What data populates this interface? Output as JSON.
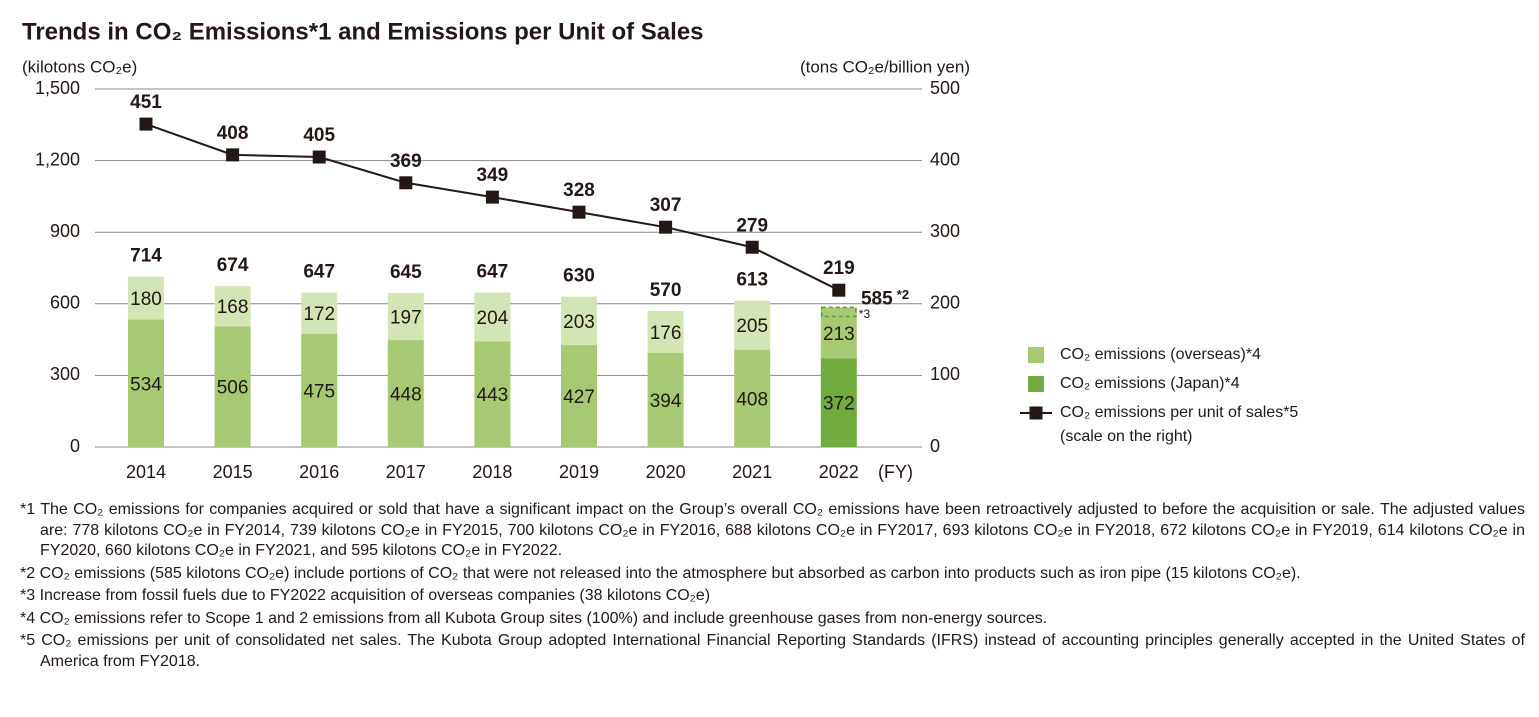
{
  "chart_data": {
    "type": "bar-line",
    "title": "Trends in CO₂ Emissions*1 and Emissions per Unit of Sales",
    "y_label": "(kilotons CO₂e)",
    "y2_label": "(tons CO₂e/billion yen)",
    "x_unit": "(FY)",
    "categories": [
      "2014",
      "2015",
      "2016",
      "2017",
      "2018",
      "2019",
      "2020",
      "2021",
      "2022"
    ],
    "series": [
      {
        "name": "CO₂ emissions (Japan)*4",
        "color": "#6fac3d",
        "colors": [
          "#a7c974",
          "#a7c974",
          "#a7c974",
          "#a7c974",
          "#a7c974",
          "#a7c974",
          "#a7c974",
          "#a7c974",
          "#6fac3d"
        ],
        "values": [
          534,
          506,
          475,
          448,
          443,
          427,
          394,
          408,
          372
        ]
      },
      {
        "name": "CO₂ emissions (overseas)*4",
        "color": "#a7c974",
        "colors": [
          "#d3e4b5",
          "#d3e4b5",
          "#d3e4b5",
          "#d3e4b5",
          "#d3e4b5",
          "#d3e4b5",
          "#d3e4b5",
          "#d3e4b5",
          "#a7c974"
        ],
        "values": [
          180,
          168,
          172,
          197,
          204,
          203,
          176,
          205,
          213
        ]
      },
      {
        "name": "CO₂ emissions per unit of sales*5",
        "name_note": "(scale on the right)",
        "color": "#231815",
        "axis": "y2",
        "values": [
          451,
          408,
          405,
          369,
          349,
          328,
          307,
          279,
          219
        ]
      }
    ],
    "totals": [
      714,
      674,
      647,
      645,
      647,
      630,
      570,
      613,
      585
    ],
    "total_note": "*2",
    "dashed_segment": {
      "value": 38,
      "label": "*3",
      "color": "#5a9e2f"
    },
    "ylim": [
      0,
      1500
    ],
    "yticks": [
      0,
      300,
      600,
      900,
      {
        "value": 1200,
        "label": "1,200"
      },
      {
        "value": 1500,
        "label": "1,500"
      }
    ],
    "y2lim": [
      0,
      500
    ],
    "y2ticks": [
      0,
      100,
      200,
      300,
      400,
      500
    ]
  },
  "footnotes": [
    "*1 The CO₂ emissions for companies acquired or sold that have a significant impact on the Group’s overall CO₂ emissions have been retroactively adjusted to before the acquisition or sale. The adjusted values are: 778 kilotons CO₂e in FY2014, 739 kilotons CO₂e in FY2015, 700 kilotons CO₂e in FY2016, 688 kilotons CO₂e in FY2017, 693 kilotons CO₂e in FY2018, 672 kilotons CO₂e in FY2019, 614 kilotons CO₂e in FY2020, 660 kilotons CO₂e in FY2021, and 595 kilotons CO₂e in FY2022.",
    "*2 CO₂ emissions (585 kilotons CO₂e) include portions of CO₂ that were not released into the atmosphere but absorbed as carbon into products such as iron pipe (15 kilotons CO₂e).",
    "*3 Increase from fossil fuels due to FY2022 acquisition of overseas companies (38 kilotons CO₂e)",
    "*4 CO₂ emissions refer to Scope 1 and 2 emissions from all Kubota Group sites (100%) and include greenhouse gases from non-energy sources.",
    "*5 CO₂ emissions per unit of consolidated net sales. The Kubota Group adopted International Financial Reporting Standards (IFRS) instead of accounting principles generally accepted in the United States of America from FY2018."
  ]
}
